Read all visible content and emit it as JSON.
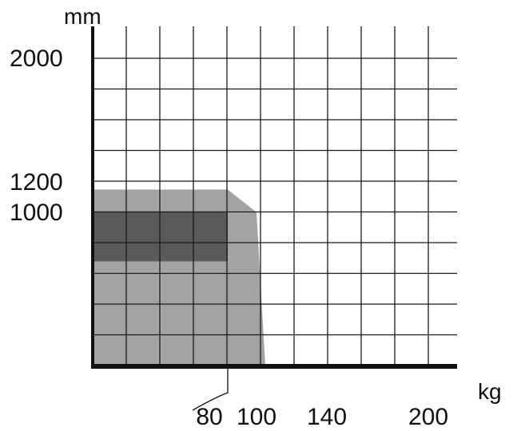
{
  "chart_data": {
    "type": "area",
    "y_unit_label": "mm",
    "x_unit_label": "kg",
    "y_tick_labels": [
      {
        "value": 2000,
        "label": "2000"
      },
      {
        "value": 1200,
        "label": "1200"
      },
      {
        "value": 1000,
        "label": "1000"
      }
    ],
    "x_tick_labels": [
      {
        "value": 80,
        "label": "80"
      },
      {
        "value": 100,
        "label": "100"
      },
      {
        "value": 140,
        "label": "140"
      },
      {
        "value": 200,
        "label": "200"
      }
    ],
    "xlim": [
      0,
      220
    ],
    "ylim": [
      0,
      2100
    ],
    "grid": true,
    "regions": [
      {
        "shape": "light-gray-envelope",
        "color": "#a3a3a3",
        "points": [
          [
            0,
            1150
          ],
          [
            80,
            1150
          ],
          [
            100,
            1000
          ],
          [
            105,
            0
          ],
          [
            0,
            0
          ]
        ]
      },
      {
        "shape": "dark-gray-band",
        "color": "#5a5a5a",
        "x_range": [
          0,
          80
        ],
        "y_range": [
          680,
          1000
        ]
      }
    ],
    "callout": {
      "from_value": 80,
      "to_value": 80
    }
  },
  "colors": {
    "axis": "#111111",
    "grid": "#1a1a1a",
    "light_region": "#a3a3a3",
    "dark_region": "#5a5a5a"
  }
}
